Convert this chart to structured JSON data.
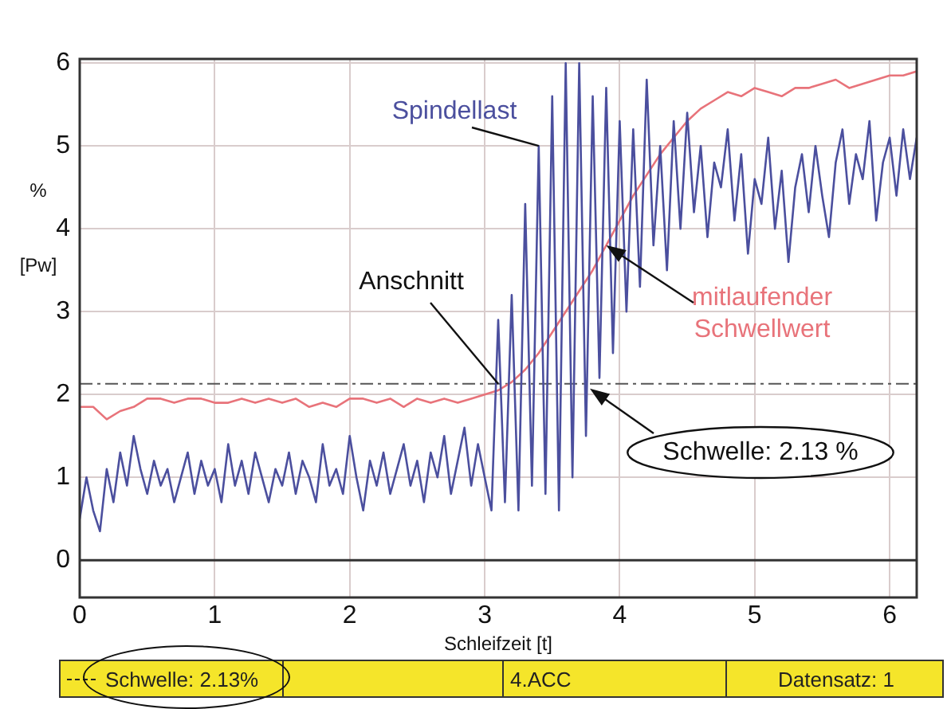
{
  "chart_data": {
    "type": "line",
    "xlabel": "Schleifzeit [t]",
    "ylabel": "% [Pw]",
    "xlim": [
      0,
      6.2
    ],
    "xticks": [
      0,
      1,
      2,
      3,
      4,
      5,
      6
    ],
    "ylim": [
      -0.45,
      6.05
    ],
    "yticks": [
      0,
      1,
      2,
      3,
      4,
      5,
      6
    ],
    "grid": true,
    "legend": false,
    "marker": "none",
    "line_style": "solid",
    "series": [
      {
        "name": "Spindellast",
        "color": "#4b4f9e",
        "x": [
          0,
          0.05,
          0.1,
          0.15,
          0.2,
          0.25,
          0.3,
          0.35,
          0.4,
          0.45,
          0.5,
          0.55,
          0.6,
          0.65,
          0.7,
          0.75,
          0.8,
          0.85,
          0.9,
          0.95,
          1,
          1.05,
          1.1,
          1.15,
          1.2,
          1.25,
          1.3,
          1.35,
          1.4,
          1.45,
          1.5,
          1.55,
          1.6,
          1.65,
          1.7,
          1.75,
          1.8,
          1.85,
          1.9,
          1.95,
          2,
          2.05,
          2.1,
          2.15,
          2.2,
          2.25,
          2.3,
          2.35,
          2.4,
          2.45,
          2.5,
          2.55,
          2.6,
          2.65,
          2.7,
          2.75,
          2.8,
          2.85,
          2.9,
          2.95,
          3,
          3.05,
          3.1,
          3.15,
          3.2,
          3.25,
          3.3,
          3.35,
          3.4,
          3.45,
          3.5,
          3.55,
          3.6,
          3.65,
          3.7,
          3.75,
          3.8,
          3.85,
          3.9,
          3.95,
          4,
          4.05,
          4.1,
          4.15,
          4.2,
          4.25,
          4.3,
          4.35,
          4.4,
          4.45,
          4.5,
          4.55,
          4.6,
          4.65,
          4.7,
          4.75,
          4.8,
          4.85,
          4.9,
          4.95,
          5,
          5.05,
          5.1,
          5.15,
          5.2,
          5.25,
          5.3,
          5.35,
          5.4,
          5.45,
          5.5,
          5.55,
          5.6,
          5.65,
          5.7,
          5.75,
          5.8,
          5.85,
          5.9,
          5.95,
          6,
          6.05,
          6.1,
          6.15,
          6.2
        ],
        "values": [
          0.5,
          1.0,
          0.6,
          0.35,
          1.1,
          0.7,
          1.3,
          0.9,
          1.5,
          1.1,
          0.8,
          1.2,
          0.9,
          1.1,
          0.7,
          1.0,
          1.3,
          0.8,
          1.2,
          0.9,
          1.1,
          0.7,
          1.4,
          0.9,
          1.2,
          0.8,
          1.3,
          1.0,
          0.7,
          1.1,
          0.9,
          1.3,
          0.8,
          1.2,
          1.0,
          0.7,
          1.4,
          0.9,
          1.1,
          0.8,
          1.5,
          1.0,
          0.6,
          1.2,
          0.9,
          1.3,
          0.8,
          1.1,
          1.4,
          0.9,
          1.2,
          0.7,
          1.3,
          1.0,
          1.5,
          0.8,
          1.2,
          1.6,
          0.9,
          1.4,
          1.0,
          0.6,
          2.9,
          0.7,
          3.2,
          0.6,
          4.3,
          0.9,
          5.0,
          0.8,
          5.6,
          0.6,
          6.0,
          1.0,
          6.0,
          1.5,
          5.6,
          2.2,
          5.7,
          2.5,
          5.3,
          3.0,
          5.2,
          3.3,
          5.8,
          3.8,
          5.0,
          3.5,
          5.3,
          4.0,
          5.4,
          4.2,
          5.0,
          3.9,
          4.8,
          4.5,
          5.2,
          4.1,
          4.9,
          3.7,
          4.6,
          4.3,
          5.1,
          4.0,
          4.7,
          3.6,
          4.5,
          4.9,
          4.2,
          5.0,
          4.4,
          3.9,
          4.8,
          5.2,
          4.3,
          4.9,
          4.6,
          5.3,
          4.1,
          4.8,
          5.1,
          4.4,
          5.2,
          4.6,
          5.1
        ]
      },
      {
        "name": "mitlaufender Schwellwert",
        "color": "#e8737a",
        "x": [
          0,
          0.1,
          0.2,
          0.3,
          0.4,
          0.5,
          0.6,
          0.7,
          0.8,
          0.9,
          1,
          1.1,
          1.2,
          1.3,
          1.4,
          1.5,
          1.6,
          1.7,
          1.8,
          1.9,
          2,
          2.1,
          2.2,
          2.3,
          2.4,
          2.5,
          2.6,
          2.7,
          2.8,
          2.9,
          3,
          3.1,
          3.2,
          3.3,
          3.4,
          3.5,
          3.6,
          3.7,
          3.8,
          3.9,
          4,
          4.1,
          4.2,
          4.3,
          4.4,
          4.5,
          4.6,
          4.7,
          4.8,
          4.9,
          5,
          5.1,
          5.2,
          5.3,
          5.4,
          5.5,
          5.6,
          5.7,
          5.8,
          5.9,
          6,
          6.1,
          6.2
        ],
        "values": [
          1.85,
          1.85,
          1.7,
          1.8,
          1.85,
          1.95,
          1.95,
          1.9,
          1.95,
          1.95,
          1.9,
          1.9,
          1.95,
          1.9,
          1.95,
          1.9,
          1.95,
          1.85,
          1.9,
          1.85,
          1.95,
          1.95,
          1.9,
          1.95,
          1.85,
          1.95,
          1.9,
          1.95,
          1.9,
          1.95,
          2.0,
          2.05,
          2.15,
          2.3,
          2.5,
          2.75,
          3.0,
          3.25,
          3.5,
          3.8,
          4.1,
          4.4,
          4.65,
          4.9,
          5.1,
          5.3,
          5.45,
          5.55,
          5.65,
          5.6,
          5.7,
          5.65,
          5.6,
          5.7,
          5.7,
          5.75,
          5.8,
          5.7,
          5.75,
          5.8,
          5.85,
          5.85,
          5.9
        ]
      }
    ],
    "ref_lines": [
      {
        "axis": "y",
        "value": 2.13,
        "label": "Schwelle: 2.13 %",
        "color": "#555555",
        "line_style": "dashed"
      }
    ],
    "annotations": [
      {
        "text": "Anschnitt",
        "x": 3.1,
        "y": 2.13
      },
      "Schwelle: 2.13%",
      "4.ACC",
      "Datensatz: 1"
    ]
  }
}
